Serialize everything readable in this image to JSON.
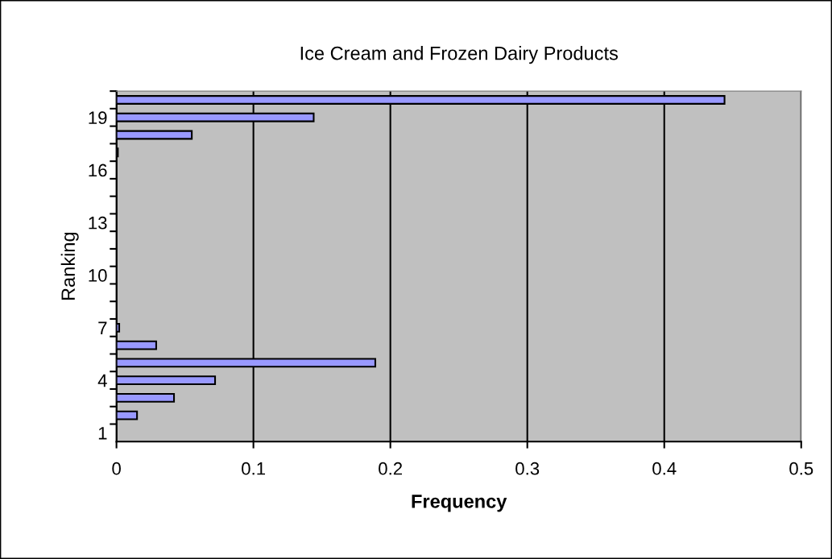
{
  "chart_data": {
    "type": "bar",
    "orientation": "horizontal",
    "title": "Ice Cream and Frozen Dairy Products",
    "xlabel": "Frequency",
    "ylabel": "Ranking",
    "categories": [
      null,
      "19",
      null,
      null,
      "16",
      null,
      null,
      "13",
      null,
      null,
      "10",
      null,
      null,
      "7",
      null,
      null,
      "4",
      null,
      null,
      "1"
    ],
    "values": [
      0.444,
      0.144,
      0.055,
      0.001,
      null,
      null,
      null,
      null,
      null,
      null,
      null,
      null,
      null,
      0.002,
      0.029,
      0.189,
      0.072,
      0.042,
      0.015,
      null
    ],
    "color": "#9999ff",
    "xlim": [
      0,
      0.5
    ],
    "xticks": [
      0,
      0.1,
      0.2,
      0.3,
      0.4,
      0.5
    ],
    "grid": "x",
    "legend": false
  }
}
